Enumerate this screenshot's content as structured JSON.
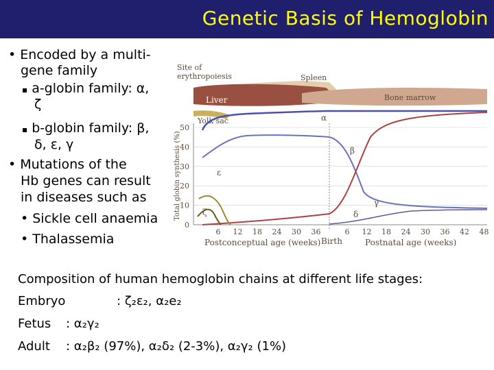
{
  "title": "Genetic Basis of Hemoglobin",
  "bullets": {
    "b1_line1": "Encoded by a multi-",
    "b1_line2": "gene family",
    "s1_line1": "a-globin family: α,",
    "s1_line2": "ζ",
    "s2_line1": "b-globin family: β,",
    "s2_line2": "δ, ε, γ",
    "b2_line1": "Mutations of the",
    "b2_line2": "Hb genes can result",
    "b2_line3": "in diseases such as",
    "s3": "Sickle cell anaemia",
    "s4": "Thalassemia"
  },
  "figure": {
    "site_label": "Site of erythropoiesis",
    "yolk_sac": "Yolk sac",
    "liver": "Liver",
    "spleen": "Spleen",
    "bone_marrow": "Bone marrow",
    "ylabel": "Total globin synthesis (%)",
    "yticks": [
      "0",
      "10",
      "20",
      "30",
      "40",
      "50"
    ],
    "xticks_pre": [
      "6",
      "12",
      "18",
      "24",
      "30",
      "36"
    ],
    "xticks_post": [
      "6",
      "12",
      "18",
      "24",
      "30",
      "36",
      "42",
      "48"
    ],
    "birth": "Birth",
    "xlabel_pre": "Postconceptual age (weeks)",
    "xlabel_post": "Postnatal age (weeks)",
    "labels": {
      "alpha": "α",
      "beta": "β",
      "gamma": "γ",
      "delta": "δ",
      "epsilon": "ε",
      "zeta": "ζ"
    }
  },
  "composition": {
    "heading": "Composition of human hemoglobin chains at different life stages:",
    "embryo": "Embryo",
    "embryo_sep": ":",
    "embryo_values": "ζ₂ε₂, α₂e₂",
    "fetus": "Fetus",
    "fetus_value": ": α₂γ₂",
    "adult": "Adult",
    "adult_value": ": α₂β₂ (97%), α₂δ₂ (2-3%), α₂γ₂ (1%)"
  },
  "colors": {
    "header_bg": "#1f1f6e",
    "title": "#ffff00",
    "alpha": "#4a50b0",
    "beta": "#b04040",
    "gamma": "#6a70c0",
    "zeta": "#6b5a20",
    "epsilon": "#9a8a30",
    "yolk": "#c8b060",
    "liver": "#9a5040",
    "bone_marrow": "#d0a890"
  }
}
